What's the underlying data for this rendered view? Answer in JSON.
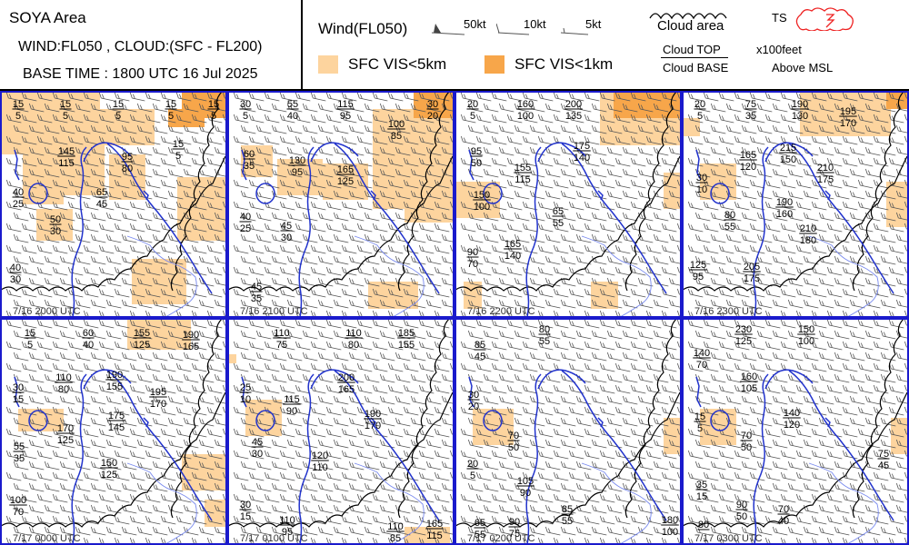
{
  "header": {
    "area": "SOYA Area",
    "wind_cloud": "WIND:FL050 , CLOUD:(SFC - FL200)",
    "base_time": "BASE TIME : 1800 UTC 16 Jul 2025"
  },
  "legend": {
    "wind_title": "Wind(FL050)",
    "kt50": "50kt",
    "kt10": "10kt",
    "kt5": "5kt",
    "cloud_area": "Cloud area",
    "ts": "TS",
    "cloud_top": "Cloud TOP",
    "cloud_base": "Cloud BASE",
    "x100feet": "x100feet",
    "above_msl": "Above MSL",
    "vis5": "SFC VIS<5km",
    "vis1": "SFC VIS<1km",
    "color_vis5": "#fdd49e",
    "color_vis1": "#f7a64a",
    "color_ts": "#ee2222"
  },
  "panels": [
    {
      "time": "7/16 2000 UTC",
      "clouds": [
        {
          "top": "15",
          "base": "5"
        },
        {
          "top": "15",
          "base": "5"
        },
        {
          "top": "15",
          "base": "5"
        },
        {
          "top": "15",
          "base": "5"
        },
        {
          "top": "15",
          "base": "5"
        },
        {
          "top": "145",
          "base": "115"
        },
        {
          "top": "95",
          "base": "80"
        },
        {
          "top": "15",
          "base": "5"
        },
        {
          "top": "40",
          "base": "25"
        },
        {
          "top": "65",
          "base": "45"
        },
        {
          "top": "50",
          "base": "30"
        },
        {
          "top": "40",
          "base": "30"
        }
      ]
    },
    {
      "time": "7/16 2100 UTC",
      "clouds": [
        {
          "top": "30",
          "base": "5"
        },
        {
          "top": "55",
          "base": "40"
        },
        {
          "top": "115",
          "base": "95"
        },
        {
          "top": "30",
          "base": "20"
        },
        {
          "top": "100",
          "base": "85"
        },
        {
          "top": "60",
          "base": "35"
        },
        {
          "top": "130",
          "base": "95"
        },
        {
          "top": "165",
          "base": "125"
        },
        {
          "top": "40",
          "base": "25"
        },
        {
          "top": "45",
          "base": "30"
        },
        {
          "top": "45",
          "base": "35"
        }
      ]
    },
    {
      "time": "7/16 2200 UTC",
      "clouds": [
        {
          "top": "20",
          "base": "5"
        },
        {
          "top": "160",
          "base": "100"
        },
        {
          "top": "200",
          "base": "135"
        },
        {
          "top": "95",
          "base": "50"
        },
        {
          "top": "175",
          "base": "140"
        },
        {
          "top": "155",
          "base": "115"
        },
        {
          "top": "150",
          "base": "100"
        },
        {
          "top": "65",
          "base": "55"
        },
        {
          "top": "165",
          "base": "140"
        },
        {
          "top": "90",
          "base": "70"
        }
      ]
    },
    {
      "time": "7/16 2300 UTC",
      "clouds": [
        {
          "top": "20",
          "base": "5"
        },
        {
          "top": "75",
          "base": "35"
        },
        {
          "top": "190",
          "base": "130"
        },
        {
          "top": "195",
          "base": "170"
        },
        {
          "top": "215",
          "base": "150"
        },
        {
          "top": "165",
          "base": "120"
        },
        {
          "top": "210",
          "base": "175"
        },
        {
          "top": "30",
          "base": "10"
        },
        {
          "top": "190",
          "base": "160"
        },
        {
          "top": "80",
          "base": "55"
        },
        {
          "top": "210",
          "base": "180"
        },
        {
          "top": "125",
          "base": "95"
        },
        {
          "top": "205",
          "base": "175"
        }
      ]
    },
    {
      "time": "7/17 0000 UTC",
      "clouds": [
        {
          "top": "15",
          "base": "5"
        },
        {
          "top": "60",
          "base": "40"
        },
        {
          "top": "155",
          "base": "125"
        },
        {
          "top": "190",
          "base": "165"
        },
        {
          "top": "110",
          "base": "80"
        },
        {
          "top": "190",
          "base": "155"
        },
        {
          "top": "30",
          "base": "15"
        },
        {
          "top": "195",
          "base": "170"
        },
        {
          "top": "175",
          "base": "145"
        },
        {
          "top": "170",
          "base": "125"
        },
        {
          "top": "55",
          "base": "35"
        },
        {
          "top": "150",
          "base": "125"
        },
        {
          "top": "100",
          "base": "70"
        }
      ]
    },
    {
      "time": "7/17 0100 UTC",
      "clouds": [
        {
          "top": "110",
          "base": "75"
        },
        {
          "top": "110",
          "base": "80"
        },
        {
          "top": "185",
          "base": "155"
        },
        {
          "top": "25",
          "base": "10"
        },
        {
          "top": "200",
          "base": "165"
        },
        {
          "top": "115",
          "base": "90"
        },
        {
          "top": "190",
          "base": "170"
        },
        {
          "top": "45",
          "base": "30"
        },
        {
          "top": "120",
          "base": "110"
        },
        {
          "top": "30",
          "base": "15"
        },
        {
          "top": "110",
          "base": "95"
        },
        {
          "top": "110",
          "base": "85"
        },
        {
          "top": "165",
          "base": "115"
        }
      ]
    },
    {
      "time": "7/17 0200 UTC",
      "clouds": [
        {
          "top": "85",
          "base": "45"
        },
        {
          "top": "80",
          "base": "55"
        },
        {
          "top": "30",
          "base": "20"
        },
        {
          "top": "70",
          "base": "50"
        },
        {
          "top": "20",
          "base": "5"
        },
        {
          "top": "105",
          "base": "90"
        },
        {
          "top": "85",
          "base": "55"
        },
        {
          "top": "65",
          "base": "55"
        },
        {
          "top": "90",
          "base": "75"
        },
        {
          "top": "180",
          "base": "100"
        }
      ]
    },
    {
      "time": "7/17 0300 UTC",
      "clouds": [
        {
          "top": "230",
          "base": "125"
        },
        {
          "top": "150",
          "base": "100"
        },
        {
          "top": "140",
          "base": "70"
        },
        {
          "top": "160",
          "base": "105"
        },
        {
          "top": "140",
          "base": "120"
        },
        {
          "top": "15",
          "base": "5"
        },
        {
          "top": "70",
          "base": "50"
        },
        {
          "top": "75",
          "base": "45"
        },
        {
          "top": "35",
          "base": "15"
        },
        {
          "top": "90",
          "base": "50"
        },
        {
          "top": "70",
          "base": "40"
        },
        {
          "top": "80",
          "base": ""
        }
      ]
    }
  ]
}
